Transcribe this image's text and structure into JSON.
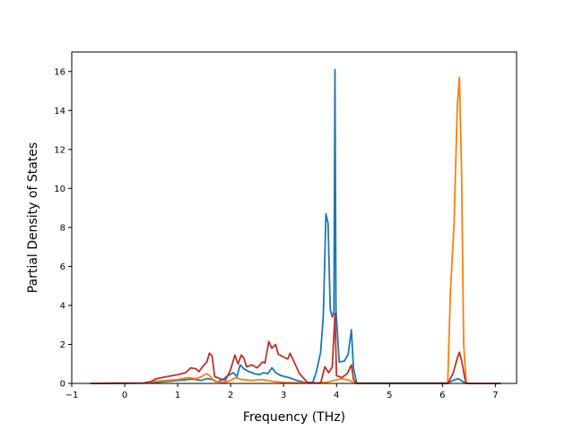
{
  "chart_data": {
    "type": "line",
    "title": "",
    "xlabel": "Frequency (THz)",
    "ylabel": "Partial Density of States",
    "xlim": [
      -1.0,
      7.4
    ],
    "ylim": [
      0,
      17
    ],
    "xticks": [
      -1,
      0,
      1,
      2,
      3,
      4,
      5,
      6,
      7
    ],
    "yticks": [
      0,
      2,
      4,
      6,
      8,
      10,
      12,
      14,
      16
    ],
    "grid": false,
    "legend": "none",
    "series": [
      {
        "color": "#1f77b4",
        "points": [
          [
            -0.65,
            0
          ],
          [
            0.4,
            0.02
          ],
          [
            0.8,
            0.1
          ],
          [
            1.0,
            0.15
          ],
          [
            1.2,
            0.2
          ],
          [
            1.3,
            0.22
          ],
          [
            1.45,
            0.15
          ],
          [
            1.55,
            0.25
          ],
          [
            1.65,
            0.2
          ],
          [
            1.75,
            0.08
          ],
          [
            1.85,
            0.2
          ],
          [
            1.95,
            0.4
          ],
          [
            2.05,
            0.55
          ],
          [
            2.12,
            0.35
          ],
          [
            2.18,
            0.95
          ],
          [
            2.25,
            0.75
          ],
          [
            2.35,
            0.6
          ],
          [
            2.45,
            0.5
          ],
          [
            2.55,
            0.45
          ],
          [
            2.62,
            0.55
          ],
          [
            2.7,
            0.5
          ],
          [
            2.78,
            0.8
          ],
          [
            2.85,
            0.55
          ],
          [
            2.95,
            0.4
          ],
          [
            3.1,
            0.3
          ],
          [
            3.25,
            0.15
          ],
          [
            3.4,
            0.05
          ],
          [
            3.55,
            0.05
          ],
          [
            3.62,
            0.6
          ],
          [
            3.7,
            1.6
          ],
          [
            3.75,
            3.5
          ],
          [
            3.8,
            8.7
          ],
          [
            3.84,
            8.2
          ],
          [
            3.88,
            3.8
          ],
          [
            3.92,
            3.4
          ],
          [
            3.95,
            3.7
          ],
          [
            3.97,
            16.1
          ],
          [
            3.99,
            3.8
          ],
          [
            4.05,
            1.1
          ],
          [
            4.15,
            1.15
          ],
          [
            4.22,
            1.5
          ],
          [
            4.28,
            2.75
          ],
          [
            4.32,
            0.8
          ],
          [
            4.38,
            0.02
          ],
          [
            6.1,
            0.02
          ],
          [
            6.2,
            0.15
          ],
          [
            6.3,
            0.25
          ],
          [
            6.38,
            0.1
          ],
          [
            6.45,
            0
          ],
          [
            7.1,
            0
          ]
        ]
      },
      {
        "color": "#ff7f0e",
        "points": [
          [
            -0.65,
            0
          ],
          [
            0.4,
            0.02
          ],
          [
            0.55,
            0.1
          ],
          [
            0.8,
            0.15
          ],
          [
            1.0,
            0.2
          ],
          [
            1.2,
            0.3
          ],
          [
            1.35,
            0.25
          ],
          [
            1.45,
            0.35
          ],
          [
            1.55,
            0.5
          ],
          [
            1.6,
            0.4
          ],
          [
            1.7,
            0.1
          ],
          [
            1.9,
            0.05
          ],
          [
            2.0,
            0.15
          ],
          [
            2.1,
            0.3
          ],
          [
            2.2,
            0.2
          ],
          [
            2.4,
            0.15
          ],
          [
            2.6,
            0.2
          ],
          [
            2.8,
            0.1
          ],
          [
            3.0,
            0.05
          ],
          [
            3.5,
            0.02
          ],
          [
            3.8,
            0.05
          ],
          [
            3.95,
            0.15
          ],
          [
            4.1,
            0.25
          ],
          [
            4.25,
            0.15
          ],
          [
            4.35,
            0
          ],
          [
            6.1,
            0
          ],
          [
            6.15,
            4.7
          ],
          [
            6.22,
            8.2
          ],
          [
            6.28,
            14.2
          ],
          [
            6.32,
            15.7
          ],
          [
            6.36,
            11.0
          ],
          [
            6.4,
            2.0
          ],
          [
            6.45,
            0
          ],
          [
            7.1,
            0
          ]
        ]
      },
      {
        "color": "#bc332b",
        "points": [
          [
            -0.65,
            0
          ],
          [
            0.35,
            0.02
          ],
          [
            0.5,
            0.1
          ],
          [
            0.6,
            0.25
          ],
          [
            0.8,
            0.35
          ],
          [
            1.0,
            0.45
          ],
          [
            1.15,
            0.55
          ],
          [
            1.25,
            0.8
          ],
          [
            1.35,
            0.75
          ],
          [
            1.4,
            0.6
          ],
          [
            1.5,
            0.95
          ],
          [
            1.55,
            1.1
          ],
          [
            1.6,
            1.55
          ],
          [
            1.65,
            1.4
          ],
          [
            1.7,
            0.35
          ],
          [
            1.8,
            0.25
          ],
          [
            1.9,
            0.15
          ],
          [
            2.0,
            0.7
          ],
          [
            2.08,
            1.45
          ],
          [
            2.14,
            1.0
          ],
          [
            2.2,
            1.45
          ],
          [
            2.25,
            1.3
          ],
          [
            2.3,
            0.85
          ],
          [
            2.4,
            0.95
          ],
          [
            2.5,
            0.8
          ],
          [
            2.6,
            1.1
          ],
          [
            2.65,
            1.05
          ],
          [
            2.72,
            2.15
          ],
          [
            2.78,
            1.8
          ],
          [
            2.85,
            2.0
          ],
          [
            2.9,
            1.5
          ],
          [
            3.0,
            1.35
          ],
          [
            3.08,
            1.25
          ],
          [
            3.12,
            1.55
          ],
          [
            3.2,
            1.1
          ],
          [
            3.3,
            0.5
          ],
          [
            3.45,
            0.05
          ],
          [
            3.7,
            0.02
          ],
          [
            3.78,
            0.85
          ],
          [
            3.85,
            0.55
          ],
          [
            3.92,
            0.85
          ],
          [
            3.97,
            3.6
          ],
          [
            4.0,
            0.4
          ],
          [
            4.1,
            0.3
          ],
          [
            4.2,
            0.5
          ],
          [
            4.28,
            0.95
          ],
          [
            4.32,
            0.2
          ],
          [
            4.38,
            0
          ],
          [
            6.1,
            0
          ],
          [
            6.2,
            0.5
          ],
          [
            6.28,
            1.3
          ],
          [
            6.32,
            1.6
          ],
          [
            6.36,
            1.2
          ],
          [
            6.42,
            0.3
          ],
          [
            6.45,
            0
          ],
          [
            7.1,
            0
          ]
        ]
      }
    ]
  }
}
